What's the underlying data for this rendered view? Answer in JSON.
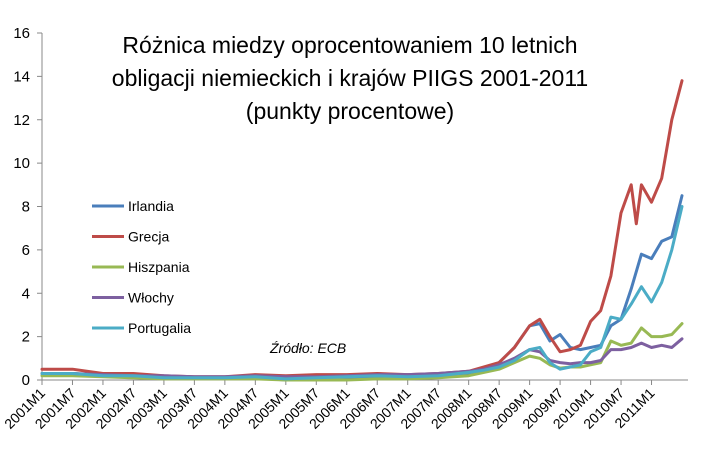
{
  "chart_data": {
    "type": "line",
    "title_lines": [
      "Różnica miedzy oprocentowaniem 10 letnich",
      "obligacji niemieckich i krajów PIIGS 2001-2011",
      "(punkty procentowe)"
    ],
    "source": "Źródło: ECB",
    "xlabel": "",
    "ylabel": "",
    "ylim": [
      0,
      16
    ],
    "yticks": [
      0,
      2,
      4,
      6,
      8,
      10,
      12,
      14,
      16
    ],
    "x_labels": [
      "2001M1",
      "2001M7",
      "2002M1",
      "2002M7",
      "2003M1",
      "2003M7",
      "2004M1",
      "2004M7",
      "2005M1",
      "2005M7",
      "2006M1",
      "2006M7",
      "2007M1",
      "2007M7",
      "2008M1",
      "2008M7",
      "2009M1",
      "2009M7",
      "2010M1",
      "2010M7",
      "2011M1"
    ],
    "grid": false,
    "legend_position": "left",
    "series": [
      {
        "name": "Irlandia",
        "color": "#4a7ebb",
        "points": [
          [
            "2001M1",
            0.3
          ],
          [
            "2001M7",
            0.3
          ],
          [
            "2002M1",
            0.2
          ],
          [
            "2002M7",
            0.2
          ],
          [
            "2003M1",
            0.1
          ],
          [
            "2003M7",
            0.1
          ],
          [
            "2004M1",
            0.1
          ],
          [
            "2004M7",
            0.1
          ],
          [
            "2005M1",
            0.0
          ],
          [
            "2005M7",
            0.05
          ],
          [
            "2006M1",
            0.05
          ],
          [
            "2006M7",
            0.1
          ],
          [
            "2007M1",
            0.1
          ],
          [
            "2007M7",
            0.2
          ],
          [
            "2008M1",
            0.3
          ],
          [
            "2008M4",
            0.5
          ],
          [
            "2008M7",
            0.8
          ],
          [
            "2008M10",
            1.5
          ],
          [
            "2009M1",
            2.5
          ],
          [
            "2009M3",
            2.6
          ],
          [
            "2009M5",
            1.8
          ],
          [
            "2009M7",
            2.1
          ],
          [
            "2009M9",
            1.5
          ],
          [
            "2009M11",
            1.4
          ],
          [
            "2010M1",
            1.5
          ],
          [
            "2010M3",
            1.6
          ],
          [
            "2010M5",
            2.5
          ],
          [
            "2010M7",
            2.8
          ],
          [
            "2010M9",
            4.2
          ],
          [
            "2010M11",
            5.8
          ],
          [
            "2011M1",
            5.6
          ],
          [
            "2011M3",
            6.4
          ],
          [
            "2011M5",
            6.6
          ],
          [
            "2011M7",
            8.5
          ]
        ]
      },
      {
        "name": "Grecja",
        "color": "#be4b48",
        "points": [
          [
            "2001M1",
            0.5
          ],
          [
            "2001M7",
            0.5
          ],
          [
            "2002M1",
            0.3
          ],
          [
            "2002M7",
            0.3
          ],
          [
            "2003M1",
            0.2
          ],
          [
            "2003M7",
            0.15
          ],
          [
            "2004M1",
            0.15
          ],
          [
            "2004M7",
            0.25
          ],
          [
            "2005M1",
            0.2
          ],
          [
            "2005M7",
            0.25
          ],
          [
            "2006M1",
            0.25
          ],
          [
            "2006M7",
            0.3
          ],
          [
            "2007M1",
            0.25
          ],
          [
            "2007M7",
            0.3
          ],
          [
            "2008M1",
            0.4
          ],
          [
            "2008M4",
            0.6
          ],
          [
            "2008M7",
            0.8
          ],
          [
            "2008M10",
            1.5
          ],
          [
            "2009M1",
            2.5
          ],
          [
            "2009M3",
            2.8
          ],
          [
            "2009M5",
            2.0
          ],
          [
            "2009M7",
            1.3
          ],
          [
            "2009M9",
            1.4
          ],
          [
            "2009M11",
            1.6
          ],
          [
            "2010M1",
            2.7
          ],
          [
            "2010M3",
            3.2
          ],
          [
            "2010M5",
            4.8
          ],
          [
            "2010M7",
            7.7
          ],
          [
            "2010M9",
            9.0
          ],
          [
            "2010M10",
            7.2
          ],
          [
            "2010M11",
            9.0
          ],
          [
            "2011M1",
            8.2
          ],
          [
            "2011M3",
            9.3
          ],
          [
            "2011M5",
            12.0
          ],
          [
            "2011M7",
            13.8
          ]
        ]
      },
      {
        "name": "Hiszpania",
        "color": "#98b954",
        "points": [
          [
            "2001M1",
            0.2
          ],
          [
            "2001M7",
            0.2
          ],
          [
            "2002M1",
            0.15
          ],
          [
            "2002M7",
            0.1
          ],
          [
            "2003M1",
            0.05
          ],
          [
            "2003M7",
            0.05
          ],
          [
            "2004M1",
            0.05
          ],
          [
            "2004M7",
            0.05
          ],
          [
            "2005M1",
            0.0
          ],
          [
            "2005M7",
            0.0
          ],
          [
            "2006M1",
            0.0
          ],
          [
            "2006M7",
            0.05
          ],
          [
            "2007M1",
            0.05
          ],
          [
            "2007M7",
            0.1
          ],
          [
            "2008M1",
            0.2
          ],
          [
            "2008M4",
            0.35
          ],
          [
            "2008M7",
            0.5
          ],
          [
            "2008M10",
            0.8
          ],
          [
            "2009M1",
            1.1
          ],
          [
            "2009M3",
            1.0
          ],
          [
            "2009M5",
            0.7
          ],
          [
            "2009M7",
            0.55
          ],
          [
            "2009M9",
            0.6
          ],
          [
            "2009M11",
            0.6
          ],
          [
            "2010M1",
            0.7
          ],
          [
            "2010M3",
            0.8
          ],
          [
            "2010M5",
            1.8
          ],
          [
            "2010M7",
            1.6
          ],
          [
            "2010M9",
            1.7
          ],
          [
            "2010M11",
            2.4
          ],
          [
            "2011M1",
            2.0
          ],
          [
            "2011M3",
            2.0
          ],
          [
            "2011M5",
            2.1
          ],
          [
            "2011M7",
            2.6
          ]
        ]
      },
      {
        "name": "Włochy",
        "color": "#7d60a0",
        "points": [
          [
            "2001M1",
            0.3
          ],
          [
            "2001M7",
            0.3
          ],
          [
            "2002M1",
            0.25
          ],
          [
            "2002M7",
            0.2
          ],
          [
            "2003M1",
            0.2
          ],
          [
            "2003M7",
            0.15
          ],
          [
            "2004M1",
            0.15
          ],
          [
            "2004M7",
            0.2
          ],
          [
            "2005M1",
            0.15
          ],
          [
            "2005M7",
            0.15
          ],
          [
            "2006M1",
            0.2
          ],
          [
            "2006M7",
            0.25
          ],
          [
            "2007M1",
            0.25
          ],
          [
            "2007M7",
            0.3
          ],
          [
            "2008M1",
            0.4
          ],
          [
            "2008M4",
            0.5
          ],
          [
            "2008M7",
            0.7
          ],
          [
            "2008M10",
            1.0
          ],
          [
            "2009M1",
            1.4
          ],
          [
            "2009M3",
            1.3
          ],
          [
            "2009M5",
            0.9
          ],
          [
            "2009M7",
            0.8
          ],
          [
            "2009M9",
            0.75
          ],
          [
            "2009M11",
            0.8
          ],
          [
            "2010M1",
            0.8
          ],
          [
            "2010M3",
            0.9
          ],
          [
            "2010M5",
            1.4
          ],
          [
            "2010M7",
            1.4
          ],
          [
            "2010M9",
            1.5
          ],
          [
            "2010M11",
            1.7
          ],
          [
            "2011M1",
            1.5
          ],
          [
            "2011M3",
            1.6
          ],
          [
            "2011M5",
            1.5
          ],
          [
            "2011M7",
            1.9
          ]
        ]
      },
      {
        "name": "Portugalia",
        "color": "#4bacc6",
        "points": [
          [
            "2001M1",
            0.3
          ],
          [
            "2001M7",
            0.3
          ],
          [
            "2002M1",
            0.2
          ],
          [
            "2002M7",
            0.2
          ],
          [
            "2003M1",
            0.1
          ],
          [
            "2003M7",
            0.1
          ],
          [
            "2004M1",
            0.1
          ],
          [
            "2004M7",
            0.15
          ],
          [
            "2005M1",
            0.05
          ],
          [
            "2005M7",
            0.1
          ],
          [
            "2006M1",
            0.15
          ],
          [
            "2006M7",
            0.2
          ],
          [
            "2007M1",
            0.15
          ],
          [
            "2007M7",
            0.2
          ],
          [
            "2008M1",
            0.35
          ],
          [
            "2008M4",
            0.45
          ],
          [
            "2008M7",
            0.6
          ],
          [
            "2008M10",
            0.9
          ],
          [
            "2009M1",
            1.4
          ],
          [
            "2009M3",
            1.5
          ],
          [
            "2009M5",
            0.8
          ],
          [
            "2009M7",
            0.5
          ],
          [
            "2009M9",
            0.6
          ],
          [
            "2009M11",
            0.7
          ],
          [
            "2010M1",
            1.3
          ],
          [
            "2010M3",
            1.5
          ],
          [
            "2010M5",
            2.9
          ],
          [
            "2010M7",
            2.8
          ],
          [
            "2010M9",
            3.5
          ],
          [
            "2010M11",
            4.3
          ],
          [
            "2011M1",
            3.6
          ],
          [
            "2011M3",
            4.5
          ],
          [
            "2011M5",
            6.0
          ],
          [
            "2011M7",
            8.0
          ]
        ]
      }
    ]
  }
}
